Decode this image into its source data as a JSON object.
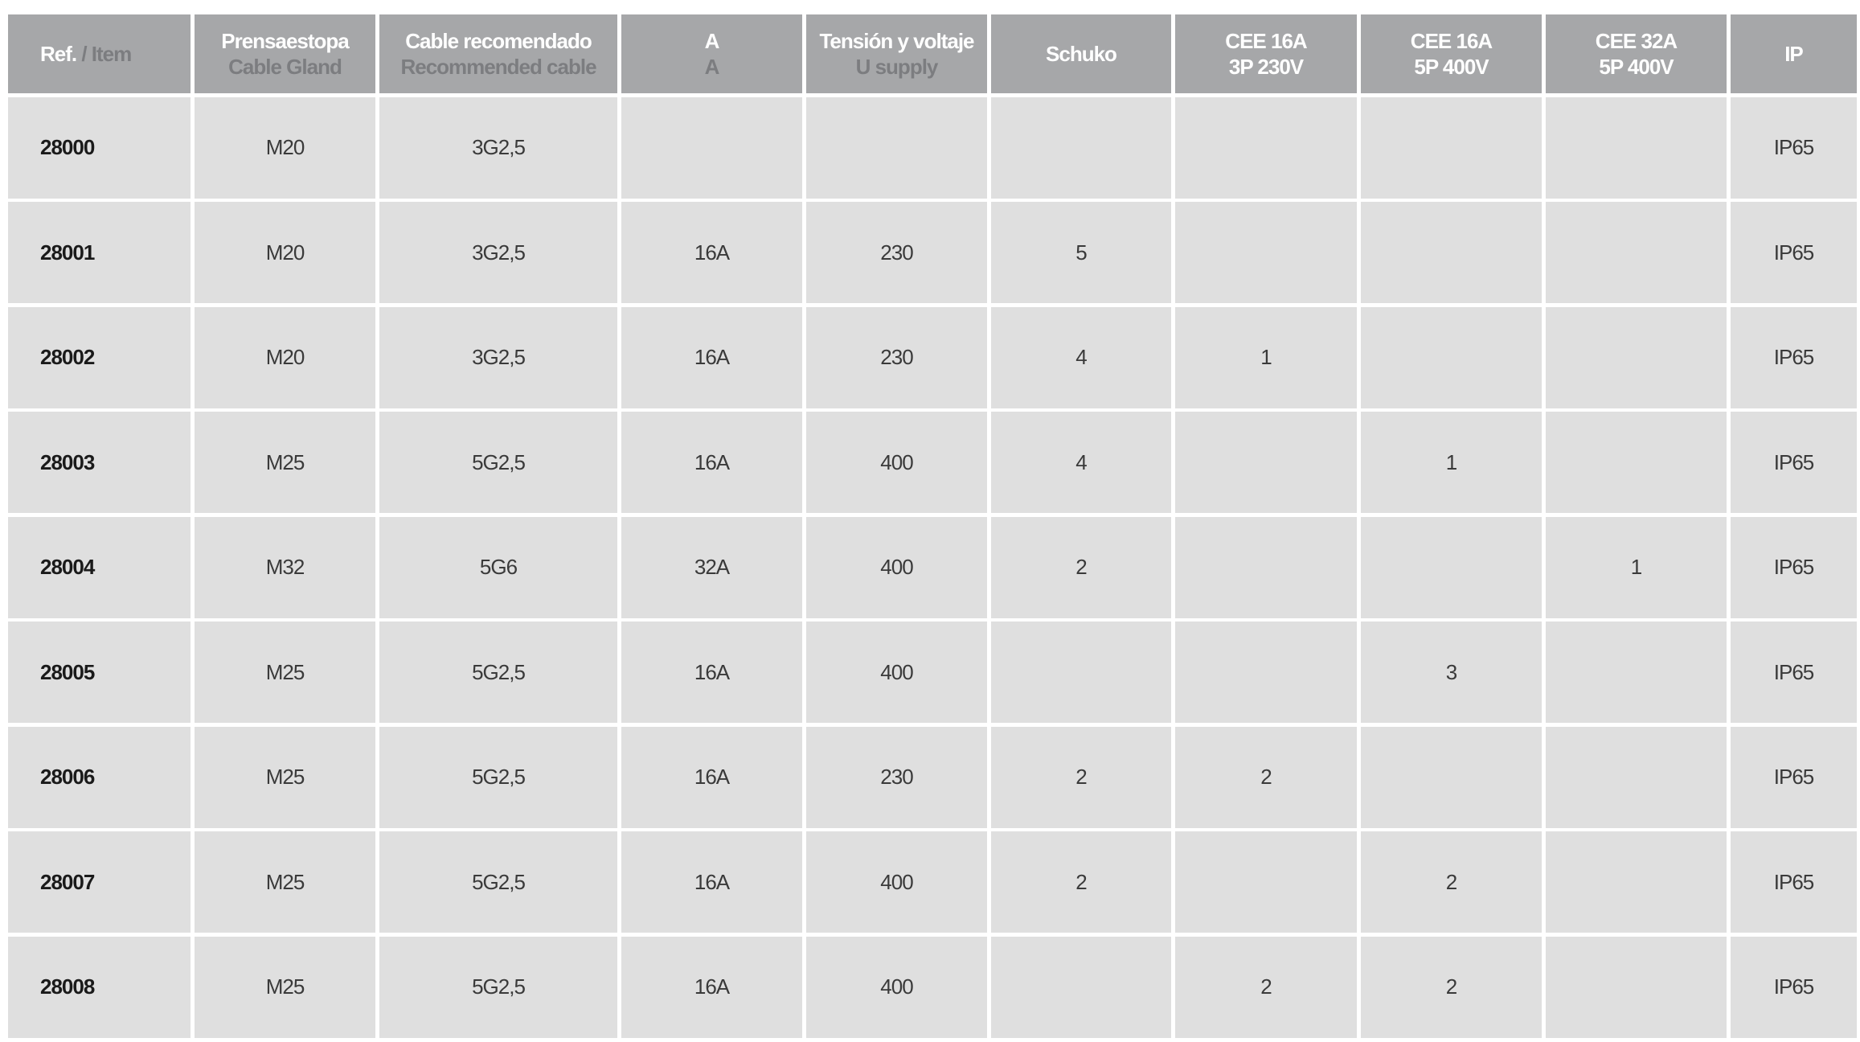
{
  "header": [
    {
      "main": "Ref.",
      "sub": " / Item"
    },
    {
      "main": "Prensaestopa",
      "sub": "Cable Gland"
    },
    {
      "main": "Cable recomendado",
      "sub": "Recommended cable"
    },
    {
      "main": "A",
      "sub": "A"
    },
    {
      "main": "Tensión y voltaje",
      "sub": "U supply"
    },
    {
      "main": "Schuko",
      "sub": ""
    },
    {
      "main": "CEE 16A",
      "sub2": "3P 230V"
    },
    {
      "main": "CEE 16A",
      "sub2": "5P 400V"
    },
    {
      "main": "CEE 32A",
      "sub2": "5P 400V"
    },
    {
      "main": "IP",
      "sub": ""
    }
  ],
  "rows": [
    [
      "28000",
      "M20",
      "3G2,5",
      "",
      "",
      "",
      "",
      "",
      "",
      "IP65"
    ],
    [
      "28001",
      "M20",
      "3G2,5",
      "16A",
      "230",
      "5",
      "",
      "",
      "",
      "IP65"
    ],
    [
      "28002",
      "M20",
      "3G2,5",
      "16A",
      "230",
      "4",
      "1",
      "",
      "",
      "IP65"
    ],
    [
      "28003",
      "M25",
      "5G2,5",
      "16A",
      "400",
      "4",
      "",
      "1",
      "",
      "IP65"
    ],
    [
      "28004",
      "M32",
      "5G6",
      "32A",
      "400",
      "2",
      "",
      "",
      "1",
      "IP65"
    ],
    [
      "28005",
      "M25",
      "5G2,5",
      "16A",
      "400",
      "",
      "",
      "3",
      "",
      "IP65"
    ],
    [
      "28006",
      "M25",
      "5G2,5",
      "16A",
      "230",
      "2",
      "2",
      "",
      "",
      "IP65"
    ],
    [
      "28007",
      "M25",
      "5G2,5",
      "16A",
      "400",
      "2",
      "",
      "2",
      "",
      "IP65"
    ],
    [
      "28008",
      "M25",
      "5G2,5",
      "16A",
      "400",
      "",
      "2",
      "2",
      "",
      "IP65"
    ]
  ],
  "colors": {
    "header_bg": "#a6a7a9",
    "header_sub": "#7c7d80",
    "cell_bg": "#dfdfdf"
  }
}
